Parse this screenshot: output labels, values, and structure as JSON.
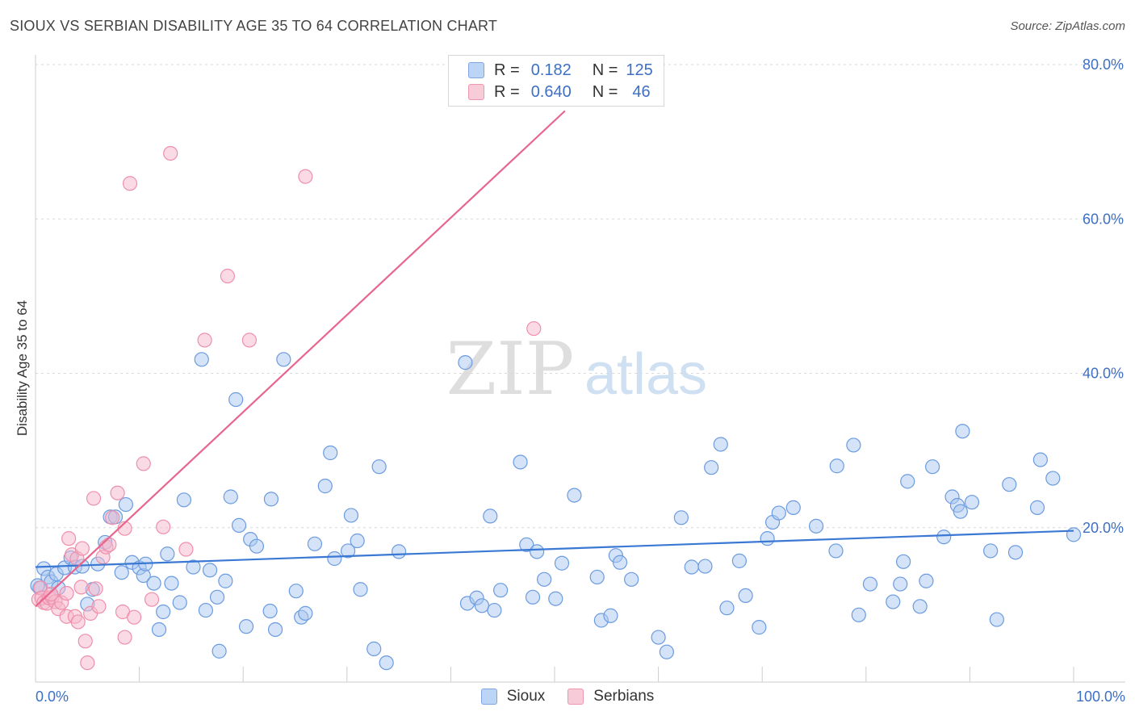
{
  "header": {
    "title": "SIOUX VS SERBIAN DISABILITY AGE 35 TO 64 CORRELATION CHART",
    "source": "Source: ZipAtlas.com"
  },
  "stats": {
    "blue": {
      "r_label": "R =",
      "r_value": "0.182",
      "n_label": "N =",
      "n_value": "125"
    },
    "pink": {
      "r_label": "R =",
      "r_value": "0.640",
      "n_label": "N =",
      "n_value": "46"
    }
  },
  "watermark": {
    "zip": "ZIP",
    "atlas": "atlas"
  },
  "colors": {
    "blue": "#3a78d4",
    "blue_fill": "#a9c8f0",
    "pink": "#e8658d",
    "pink_fill": "#f6b8cb",
    "axis_text": "#3d6fc4"
  },
  "chart_data": {
    "type": "scatter",
    "title": "SIOUX VS SERBIAN DISABILITY AGE 35 TO 64 CORRELATION CHART",
    "ylabel": "Disability Age 35 to 64",
    "xlabel": "",
    "xlim": [
      0,
      100
    ],
    "ylim": [
      0,
      80
    ],
    "x_tick_labels": [
      "0.0%",
      "100.0%"
    ],
    "y_ticks": [
      20,
      40,
      60,
      80
    ],
    "y_tick_labels": [
      "20.0%",
      "40.0%",
      "60.0%",
      "80.0%"
    ],
    "grid": true,
    "legend_position": "bottom-center",
    "series": [
      {
        "name": "Sioux",
        "color": "#3a78d4",
        "trend": {
          "x": [
            0,
            100
          ],
          "y": [
            14.9,
            19.6
          ]
        },
        "points": [
          [
            0.8,
            14.7
          ],
          [
            1.2,
            13.6
          ],
          [
            1.5,
            13.0
          ],
          [
            2.0,
            14.0
          ],
          [
            2.2,
            12.2
          ],
          [
            2.8,
            14.8
          ],
          [
            3.4,
            16.1
          ],
          [
            3.8,
            14.9
          ],
          [
            4.5,
            15.0
          ],
          [
            5.0,
            10.1
          ],
          [
            5.5,
            12.0
          ],
          [
            6.0,
            15.3
          ],
          [
            6.7,
            18.1
          ],
          [
            7.2,
            21.4
          ],
          [
            7.7,
            21.4
          ],
          [
            8.3,
            14.2
          ],
          [
            8.7,
            23.0
          ],
          [
            9.3,
            15.5
          ],
          [
            10.0,
            14.8
          ],
          [
            10.4,
            13.8
          ],
          [
            10.6,
            15.3
          ],
          [
            11.4,
            12.8
          ],
          [
            11.9,
            6.8
          ],
          [
            12.3,
            9.1
          ],
          [
            12.7,
            16.6
          ],
          [
            13.1,
            12.8
          ],
          [
            13.9,
            10.3
          ],
          [
            14.3,
            23.6
          ],
          [
            15.2,
            14.9
          ],
          [
            16.4,
            9.3
          ],
          [
            16.0,
            41.8
          ],
          [
            16.8,
            14.5
          ],
          [
            17.5,
            11.0
          ],
          [
            17.7,
            4.0
          ],
          [
            18.3,
            13.1
          ],
          [
            18.8,
            24.0
          ],
          [
            19.3,
            36.6
          ],
          [
            19.6,
            20.3
          ],
          [
            20.3,
            7.2
          ],
          [
            20.7,
            18.5
          ],
          [
            21.3,
            17.6
          ],
          [
            22.6,
            9.2
          ],
          [
            22.7,
            23.7
          ],
          [
            23.1,
            6.8
          ],
          [
            23.9,
            41.8
          ],
          [
            25.1,
            11.8
          ],
          [
            25.6,
            8.4
          ],
          [
            26.0,
            8.9
          ],
          [
            26.9,
            17.9
          ],
          [
            27.9,
            25.4
          ],
          [
            28.4,
            29.7
          ],
          [
            28.8,
            16.0
          ],
          [
            30.1,
            17.0
          ],
          [
            30.4,
            21.6
          ],
          [
            31.0,
            18.3
          ],
          [
            31.3,
            12.0
          ],
          [
            32.6,
            4.3
          ],
          [
            33.1,
            27.9
          ],
          [
            33.8,
            2.5
          ],
          [
            35.0,
            16.9
          ],
          [
            41.4,
            41.4
          ],
          [
            41.6,
            10.2
          ],
          [
            42.5,
            10.9
          ],
          [
            43.0,
            9.9
          ],
          [
            43.8,
            21.5
          ],
          [
            44.2,
            9.3
          ],
          [
            44.8,
            11.9
          ],
          [
            46.7,
            28.5
          ],
          [
            47.3,
            17.8
          ],
          [
            47.9,
            11.0
          ],
          [
            48.3,
            16.9
          ],
          [
            49.0,
            13.3
          ],
          [
            50.1,
            10.8
          ],
          [
            50.7,
            15.4
          ],
          [
            51.9,
            24.2
          ],
          [
            54.1,
            13.6
          ],
          [
            54.5,
            8.0
          ],
          [
            55.4,
            8.6
          ],
          [
            55.9,
            16.4
          ],
          [
            56.3,
            15.5
          ],
          [
            57.4,
            13.3
          ],
          [
            60.0,
            5.8
          ],
          [
            60.8,
            3.9
          ],
          [
            62.2,
            21.3
          ],
          [
            63.2,
            14.9
          ],
          [
            64.5,
            15.0
          ],
          [
            65.1,
            27.8
          ],
          [
            66.0,
            30.8
          ],
          [
            66.6,
            9.6
          ],
          [
            67.8,
            15.7
          ],
          [
            68.4,
            11.2
          ],
          [
            69.7,
            7.1
          ],
          [
            70.5,
            18.6
          ],
          [
            71.0,
            20.7
          ],
          [
            71.6,
            21.9
          ],
          [
            73.0,
            22.6
          ],
          [
            75.2,
            20.2
          ],
          [
            77.1,
            17.0
          ],
          [
            77.2,
            28.0
          ],
          [
            78.8,
            30.7
          ],
          [
            79.3,
            8.7
          ],
          [
            80.4,
            12.7
          ],
          [
            82.6,
            10.4
          ],
          [
            83.3,
            12.7
          ],
          [
            83.6,
            15.6
          ],
          [
            84.0,
            26.0
          ],
          [
            85.2,
            9.8
          ],
          [
            85.8,
            13.1
          ],
          [
            86.4,
            27.9
          ],
          [
            87.5,
            18.8
          ],
          [
            88.3,
            24.0
          ],
          [
            88.8,
            22.9
          ],
          [
            89.1,
            22.1
          ],
          [
            89.3,
            32.5
          ],
          [
            90.2,
            23.3
          ],
          [
            92.0,
            17.0
          ],
          [
            92.6,
            8.1
          ],
          [
            93.8,
            25.6
          ],
          [
            94.4,
            16.8
          ],
          [
            96.5,
            22.6
          ],
          [
            96.8,
            28.8
          ],
          [
            98.0,
            26.4
          ],
          [
            100.0,
            19.1
          ],
          [
            0.4,
            12.2
          ],
          [
            0.2,
            12.5
          ]
        ]
      },
      {
        "name": "Serbians",
        "color": "#e8658d",
        "trend": {
          "x": [
            0,
            51.0
          ],
          "y": [
            9.8,
            74.0
          ]
        },
        "points": [
          [
            0.3,
            10.7
          ],
          [
            0.5,
            12.2
          ],
          [
            0.6,
            10.9
          ],
          [
            0.8,
            10.3
          ],
          [
            1.1,
            10.2
          ],
          [
            1.3,
            10.9
          ],
          [
            1.6,
            11.0
          ],
          [
            1.9,
            10.4
          ],
          [
            2.2,
            9.5
          ],
          [
            2.5,
            10.3
          ],
          [
            3.0,
            8.5
          ],
          [
            3.2,
            18.6
          ],
          [
            3.5,
            16.5
          ],
          [
            3.8,
            8.5
          ],
          [
            4.0,
            16.0
          ],
          [
            4.1,
            7.8
          ],
          [
            4.4,
            12.3
          ],
          [
            4.5,
            17.3
          ],
          [
            4.8,
            5.3
          ],
          [
            5.0,
            2.5
          ],
          [
            5.3,
            8.9
          ],
          [
            5.6,
            23.8
          ],
          [
            5.8,
            12.1
          ],
          [
            6.1,
            9.8
          ],
          [
            6.5,
            16.2
          ],
          [
            6.8,
            17.5
          ],
          [
            7.1,
            17.8
          ],
          [
            7.4,
            21.3
          ],
          [
            7.9,
            24.5
          ],
          [
            8.4,
            9.1
          ],
          [
            8.6,
            19.9
          ],
          [
            8.6,
            5.8
          ],
          [
            9.1,
            64.6
          ],
          [
            9.5,
            8.4
          ],
          [
            10.4,
            28.3
          ],
          [
            11.2,
            10.7
          ],
          [
            12.3,
            20.1
          ],
          [
            13.0,
            68.5
          ],
          [
            14.5,
            17.2
          ],
          [
            16.3,
            44.3
          ],
          [
            18.5,
            52.6
          ],
          [
            20.6,
            44.3
          ],
          [
            26.0,
            65.5
          ],
          [
            48.0,
            45.8
          ],
          [
            3.0,
            11.5
          ],
          [
            1.5,
            11.4
          ]
        ]
      }
    ]
  }
}
